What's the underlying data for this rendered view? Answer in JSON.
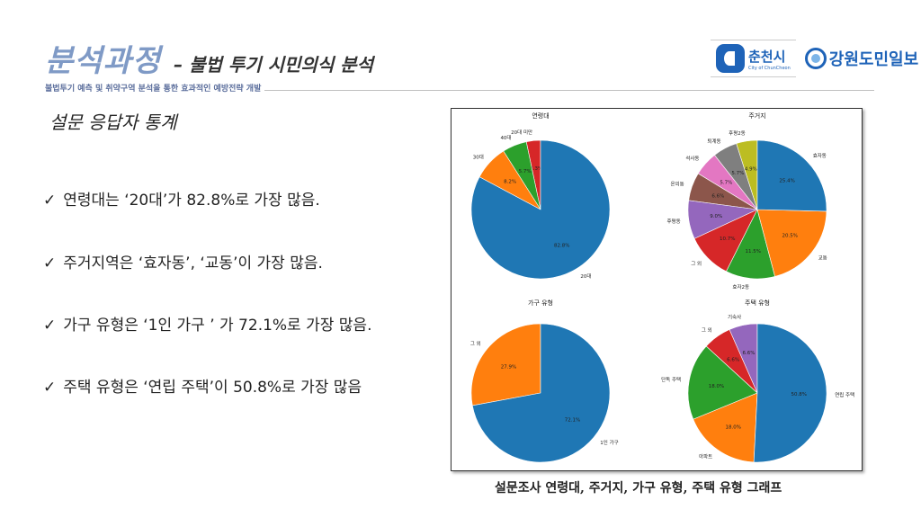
{
  "header": {
    "title": "분석과정",
    "title_suffix": "– 불법 투기 시민의식 분석",
    "subtitle": "불법투기 예측 및 취약구역 분석을 통한 효과적인 예방전략 개발"
  },
  "logos": {
    "chuncheon_name": "춘천시",
    "chuncheon_en": "City of ChunCheon",
    "newspaper_name": "강원도민일보"
  },
  "section_title": "설문 응답자 통계",
  "bullets": [
    {
      "check": "✓",
      "text": "연령대는 ‘20대’가 82.8%로 가장 많음."
    },
    {
      "check": "✓",
      "text": "주거지역은  ‘효자동’, ‘교동’이 가장 많음."
    },
    {
      "check": "✓",
      "text": "가구 유형은 ‘1인 가구 ’ 가 72.1%로 가장 많음."
    },
    {
      "check": "✓",
      "text": "주택 유형은 ‘연립 주택’이 50.8%로 가장 많음"
    }
  ],
  "caption": "설문조사 연령대, 주거지, 가구 유형, 주택 유형 그래프",
  "chart_data": [
    {
      "type": "pie",
      "title": "연령대",
      "labels": [
        "20대 미만",
        "40대",
        "30대",
        "20대"
      ],
      "values": [
        3.3,
        5.7,
        8.2,
        82.8
      ],
      "value_labels": [
        "3.3%",
        "5.7%",
        "8.2%",
        "82.8%"
      ],
      "colors": [
        "#d62728",
        "#2ca02c",
        "#ff7f0e",
        "#1f77b4"
      ]
    },
    {
      "type": "pie",
      "title": "주거지",
      "labels": [
        "후평2동",
        "퇴계동",
        "석사동",
        "온의동",
        "후평동",
        "그 외",
        "효자2동",
        "교동",
        "효자동"
      ],
      "values": [
        4.9,
        5.7,
        5.7,
        6.6,
        9.0,
        10.7,
        11.5,
        20.5,
        25.4
      ],
      "value_labels": [
        "4.9%",
        "5.7%",
        "5.7%",
        "6.6%",
        "9.0%",
        "10.7%",
        "11.5%",
        "20.5%",
        "25.4%"
      ],
      "colors": [
        "#bcbd22",
        "#7f7f7f",
        "#e377c2",
        "#8c564b",
        "#9467bd",
        "#d62728",
        "#2ca02c",
        "#ff7f0e",
        "#1f77b4"
      ]
    },
    {
      "type": "pie",
      "title": "가구 유형",
      "labels": [
        "그 외",
        "1인 가구"
      ],
      "values": [
        27.9,
        72.1
      ],
      "value_labels": [
        "27.9%",
        "72.1%"
      ],
      "colors": [
        "#ff7f0e",
        "#1f77b4"
      ]
    },
    {
      "type": "pie",
      "title": "주택 유형",
      "labels": [
        "기숙사",
        "그 외",
        "단독 주택",
        "아파트",
        "연립 주택"
      ],
      "values": [
        6.6,
        6.6,
        18.0,
        18.0,
        50.8
      ],
      "value_labels": [
        "6.6%",
        "6.6%",
        "18.0%",
        "18.0%",
        "50.8%"
      ],
      "colors": [
        "#9467bd",
        "#d62728",
        "#2ca02c",
        "#ff7f0e",
        "#1f77b4"
      ]
    }
  ]
}
